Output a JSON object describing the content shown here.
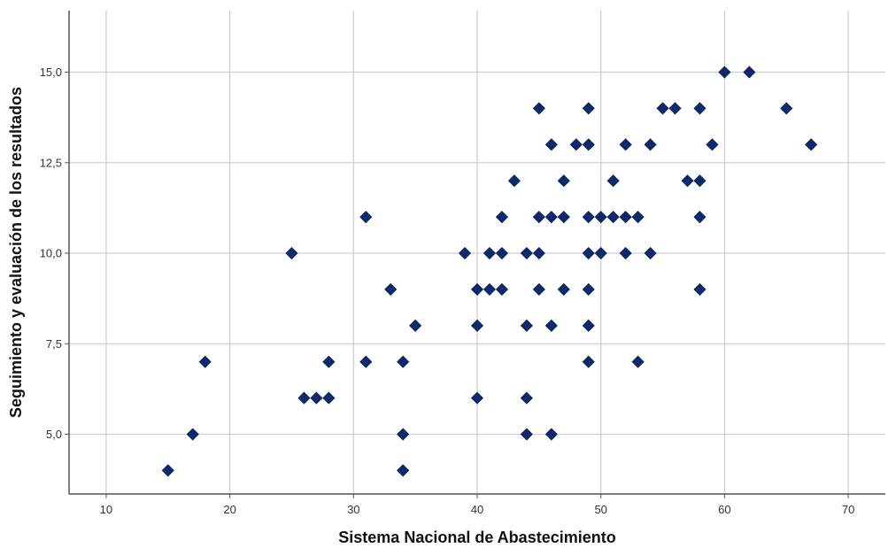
{
  "chart_data": {
    "type": "scatter",
    "title": "",
    "xlabel": "Sistema Nacional de Abastecimiento",
    "ylabel": "Seguimiento y evaluación de los resultados",
    "xlim": [
      7,
      73
    ],
    "ylim": [
      3.35,
      16.7
    ],
    "xticks": [
      10,
      20,
      30,
      40,
      50,
      60,
      70
    ],
    "xtick_labels": [
      "10",
      "20",
      "30",
      "40",
      "50",
      "60",
      "70"
    ],
    "yticks": [
      5,
      7.5,
      10,
      12.5,
      15
    ],
    "ytick_labels": [
      "5,0",
      "7,5",
      "10,0",
      "12,5",
      "15,0"
    ],
    "grid": true,
    "legend": "none",
    "marker": "diamond",
    "marker_color": "#0d2a6e",
    "series": [
      {
        "points": [
          [
            15,
            4
          ],
          [
            17,
            5
          ],
          [
            18,
            7
          ],
          [
            25,
            10
          ],
          [
            26,
            6
          ],
          [
            27,
            6
          ],
          [
            28,
            6
          ],
          [
            28,
            7
          ],
          [
            31,
            11
          ],
          [
            31,
            7
          ],
          [
            33,
            9
          ],
          [
            34,
            7
          ],
          [
            34,
            5
          ],
          [
            34,
            4
          ],
          [
            35,
            8
          ],
          [
            39,
            10
          ],
          [
            40,
            9
          ],
          [
            40,
            8
          ],
          [
            40,
            6
          ],
          [
            41,
            10
          ],
          [
            41,
            9
          ],
          [
            42,
            11
          ],
          [
            42,
            10
          ],
          [
            42,
            9
          ],
          [
            43,
            12
          ],
          [
            44,
            10
          ],
          [
            44,
            8
          ],
          [
            44,
            6
          ],
          [
            44,
            5
          ],
          [
            45,
            14
          ],
          [
            45,
            11
          ],
          [
            45,
            10
          ],
          [
            45,
            9
          ],
          [
            46,
            13
          ],
          [
            46,
            11
          ],
          [
            46,
            8
          ],
          [
            46,
            5
          ],
          [
            47,
            12
          ],
          [
            47,
            11
          ],
          [
            47,
            9
          ],
          [
            48,
            13
          ],
          [
            49,
            14
          ],
          [
            49,
            13
          ],
          [
            49,
            11
          ],
          [
            49,
            10
          ],
          [
            49,
            9
          ],
          [
            49,
            8
          ],
          [
            49,
            7
          ],
          [
            50,
            11
          ],
          [
            50,
            10
          ],
          [
            51,
            12
          ],
          [
            51,
            11
          ],
          [
            52,
            13
          ],
          [
            52,
            11
          ],
          [
            52,
            10
          ],
          [
            53,
            11
          ],
          [
            53,
            7
          ],
          [
            54,
            13
          ],
          [
            54,
            10
          ],
          [
            55,
            14
          ],
          [
            56,
            14
          ],
          [
            57,
            12
          ],
          [
            58,
            14
          ],
          [
            58,
            12
          ],
          [
            58,
            11
          ],
          [
            58,
            9
          ],
          [
            59,
            13
          ],
          [
            60,
            15
          ],
          [
            62,
            15
          ],
          [
            65,
            14
          ],
          [
            67,
            13
          ]
        ]
      }
    ]
  }
}
